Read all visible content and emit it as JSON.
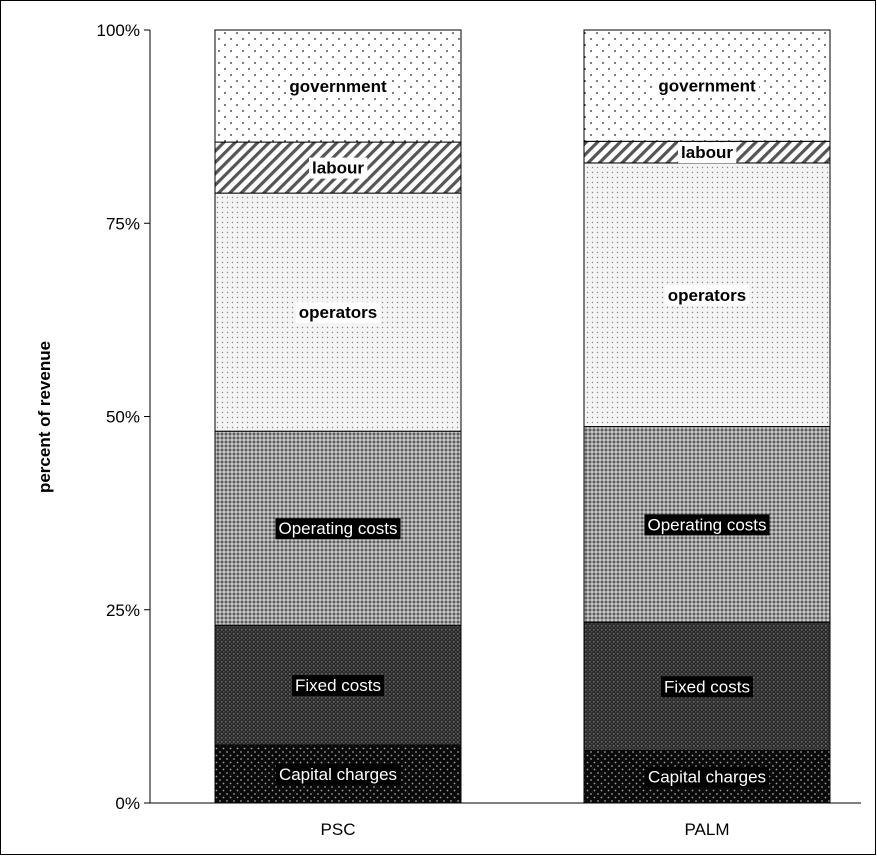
{
  "chart_data": {
    "type": "bar",
    "stacked": true,
    "normalized": true,
    "categories": [
      "PSC",
      "PALM"
    ],
    "series": [
      {
        "name": "Capital charges",
        "values": [
          7.5,
          6.8
        ]
      },
      {
        "name": "Fixed costs",
        "values": [
          15.5,
          16.6
        ]
      },
      {
        "name": "Operating costs",
        "values": [
          25.1,
          25.3
        ]
      },
      {
        "name": "operators",
        "values": [
          30.8,
          34.1
        ]
      },
      {
        "name": "labour",
        "values": [
          6.6,
          2.8
        ]
      },
      {
        "name": "government",
        "values": [
          14.5,
          14.4
        ]
      }
    ],
    "ylabel": "percent of revenue",
    "yticks": [
      "0%",
      "25%",
      "50%",
      "75%",
      "100%"
    ],
    "ylim": [
      0,
      100
    ],
    "legend": "none",
    "grid": false
  }
}
